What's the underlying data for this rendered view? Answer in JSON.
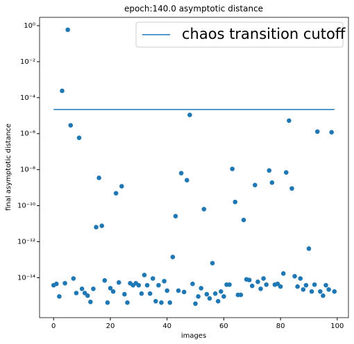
{
  "chart_data": {
    "type": "scatter",
    "title": "epoch:140.0 asymptotic distance",
    "xlabel": "images",
    "ylabel": "final asymptotic distance",
    "yscale": "log",
    "grid": false,
    "legend": "upper right",
    "xlim": [
      -4.95,
      103.95
    ],
    "xticks": [
      0,
      20,
      40,
      60,
      80,
      100
    ],
    "ylim": [
      6e-17,
      2.9
    ],
    "yticks": [
      {
        "value": 1,
        "label": "10⁰"
      },
      {
        "value": 0.01,
        "label": "10⁻²"
      },
      {
        "value": 0.0001,
        "label": "10⁻⁴"
      },
      {
        "value": 1e-06,
        "label": "10⁻⁶"
      },
      {
        "value": 1e-08,
        "label": "10⁻⁸"
      },
      {
        "value": 1e-10,
        "label": "10⁻¹⁰"
      },
      {
        "value": 1e-12,
        "label": "10⁻¹²"
      },
      {
        "value": 1e-14,
        "label": "10⁻¹⁴"
      }
    ],
    "series": [
      {
        "type": "scatter",
        "color": "#1f77b4",
        "x": [
          0,
          1,
          2,
          3,
          4,
          5,
          6,
          7,
          8,
          9,
          10,
          11,
          12,
          13,
          14,
          15,
          16,
          17,
          18,
          19,
          20,
          21,
          22,
          23,
          24,
          25,
          26,
          27,
          28,
          29,
          30,
          31,
          32,
          33,
          34,
          35,
          36,
          37,
          38,
          39,
          40,
          41,
          42,
          43,
          44,
          45,
          46,
          47,
          48,
          49,
          50,
          51,
          52,
          53,
          54,
          55,
          56,
          57,
          58,
          59,
          60,
          61,
          62,
          63,
          64,
          65,
          66,
          67,
          68,
          69,
          70,
          71,
          72,
          73,
          74,
          75,
          76,
          77,
          78,
          79,
          80,
          81,
          82,
          83,
          84,
          85,
          86,
          87,
          88,
          89,
          90,
          91,
          92,
          93,
          94,
          95,
          96,
          97,
          98,
          99
        ],
        "values": [
          3.8e-15,
          4.5e-15,
          9e-16,
          0.00024,
          4.9e-15,
          0.59,
          2.9e-06,
          9e-15,
          1.4e-15,
          5.9e-07,
          2.4e-15,
          1.4e-15,
          1e-15,
          4.5e-16,
          2.4e-15,
          6.4e-12,
          3.5e-09,
          7.6e-12,
          7e-15,
          4.1e-16,
          2.6e-15,
          1.7e-15,
          4.9e-10,
          5.4e-15,
          1.2e-09,
          1.2e-15,
          4.1e-16,
          4.9e-15,
          3.8e-15,
          4.9e-15,
          3.8e-15,
          1.3e-15,
          1.4e-14,
          3.8e-15,
          1.3e-15,
          9e-15,
          4.9e-16,
          3.8e-15,
          4.1e-16,
          6.4e-15,
          1.9e-15,
          4.1e-16,
          1.4e-13,
          2.6e-11,
          1.9e-15,
          6.4e-09,
          1.6e-15,
          2.6e-09,
          1.1e-05,
          4.5e-15,
          3.6e-16,
          9e-16,
          2.6e-15,
          6.4e-11,
          1.2e-15,
          7e-16,
          6.4e-14,
          1.3e-15,
          4.9e-16,
          1.7e-15,
          9e-16,
          4.1e-15,
          4.1e-15,
          1.1e-08,
          1.6e-10,
          1.1e-15,
          1.1e-15,
          1.6e-11,
          8e-15,
          7.4e-15,
          3.5e-15,
          1.4e-09,
          5.9e-15,
          2.4e-15,
          9e-15,
          4.1e-15,
          9e-09,
          1.9e-09,
          4.1e-15,
          4.5e-15,
          3.2e-15,
          1.7e-14,
          7e-09,
          5.3e-06,
          9e-10,
          1.2e-14,
          3.2e-15,
          9e-15,
          2.2e-15,
          3.8e-15,
          4.1e-13,
          1.7e-15,
          4.1e-15,
          1.3e-06,
          1.7e-15,
          1e-15,
          3.8e-15,
          2.2e-15,
          1.2e-06,
          1.7e-15
        ]
      },
      {
        "type": "line",
        "name": "chaos transition cutoff",
        "color": "#1f77b4",
        "x": [
          0,
          99
        ],
        "values": [
          2.2e-05,
          2.2e-05
        ]
      }
    ]
  }
}
